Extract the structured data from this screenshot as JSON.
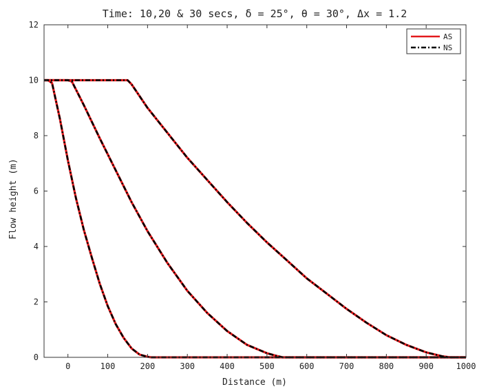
{
  "chart_data": {
    "type": "line",
    "title": "Time: 10,20 & 30 secs, δ = 25°, θ = 30°, Δx = 1.2",
    "xlabel": "Distance (m)",
    "ylabel": "Flow height (m)",
    "xlim": [
      -60,
      1000
    ],
    "ylim": [
      0,
      12
    ],
    "xticks": [
      0,
      100,
      200,
      300,
      400,
      500,
      600,
      700,
      800,
      900,
      1000
    ],
    "yticks": [
      0,
      2,
      4,
      6,
      8,
      10,
      12
    ],
    "grid": false,
    "legend_position": "top-right",
    "series": [
      {
        "name": "AS",
        "color": "#e31a1c",
        "style": "solid",
        "curves": [
          {
            "x": [
              -60,
              -50,
              -40,
              -20,
              0,
              20,
              40,
              60,
              80,
              100,
              120,
              140,
              160,
              180,
              200,
              210,
              220,
              1000
            ],
            "y": [
              10,
              10,
              9.9,
              8.6,
              7.1,
              5.75,
              4.6,
              3.6,
              2.65,
              1.85,
              1.2,
              0.7,
              0.32,
              0.1,
              0.02,
              0,
              0,
              0
            ]
          },
          {
            "x": [
              -60,
              0,
              10,
              40,
              80,
              120,
              160,
              200,
              250,
              300,
              350,
              400,
              450,
              500,
              525,
              540,
              1000
            ],
            "y": [
              10,
              10,
              9.95,
              9.1,
              7.9,
              6.75,
              5.6,
              4.55,
              3.4,
              2.4,
              1.6,
              0.95,
              0.45,
              0.15,
              0.05,
              0,
              0
            ]
          },
          {
            "x": [
              -60,
              150,
              160,
              200,
              250,
              300,
              350,
              400,
              450,
              500,
              550,
              600,
              650,
              700,
              750,
              800,
              850,
              900,
              940,
              960,
              1000
            ],
            "y": [
              10,
              10,
              9.85,
              9.0,
              8.1,
              7.2,
              6.4,
              5.6,
              4.85,
              4.15,
              3.5,
              2.85,
              2.3,
              1.75,
              1.25,
              0.8,
              0.45,
              0.18,
              0.04,
              0,
              0
            ]
          }
        ]
      },
      {
        "name": "NS",
        "color": "#000000",
        "style": "dashdot",
        "curves": [
          {
            "x": [
              -60,
              -50,
              -40,
              -20,
              0,
              20,
              40,
              60,
              80,
              100,
              120,
              140,
              160,
              180,
              200,
              210,
              220,
              1000
            ],
            "y": [
              10,
              10,
              9.9,
              8.6,
              7.1,
              5.75,
              4.6,
              3.6,
              2.65,
              1.85,
              1.2,
              0.7,
              0.32,
              0.1,
              0.02,
              0,
              0,
              0
            ]
          },
          {
            "x": [
              -60,
              0,
              10,
              40,
              80,
              120,
              160,
              200,
              250,
              300,
              350,
              400,
              450,
              500,
              525,
              540,
              1000
            ],
            "y": [
              10,
              10,
              9.95,
              9.1,
              7.9,
              6.75,
              5.6,
              4.55,
              3.4,
              2.4,
              1.6,
              0.95,
              0.45,
              0.15,
              0.05,
              0,
              0
            ]
          },
          {
            "x": [
              -60,
              150,
              160,
              200,
              250,
              300,
              350,
              400,
              450,
              500,
              550,
              600,
              650,
              700,
              750,
              800,
              850,
              900,
              940,
              960,
              1000
            ],
            "y": [
              10,
              10,
              9.85,
              9.0,
              8.1,
              7.2,
              6.4,
              5.6,
              4.85,
              4.15,
              3.5,
              2.85,
              2.3,
              1.75,
              1.25,
              0.8,
              0.45,
              0.18,
              0.04,
              0,
              0
            ]
          }
        ]
      }
    ]
  }
}
